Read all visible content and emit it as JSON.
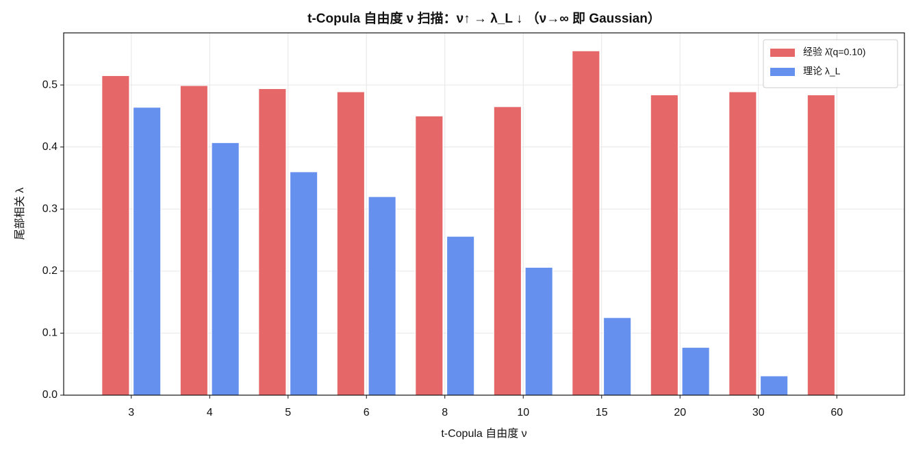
{
  "chart_data": {
    "type": "bar",
    "title": "t-Copula 自由度 ν 扫描：ν↑ → λ_L ↓ （ν→∞ 即 Gaussian）",
    "x_label": "t-Copula 自由度 ν",
    "y_label": "尾部相关 λ",
    "categories": [
      "3",
      "4",
      "5",
      "6",
      "8",
      "10",
      "15",
      "20",
      "30",
      "60"
    ],
    "series": [
      {
        "name": "经验 λ̂(q=0.10)",
        "color": "#e66767",
        "values": [
          0.515,
          0.499,
          0.494,
          0.489,
          0.45,
          0.465,
          0.555,
          0.484,
          0.489,
          0.484
        ]
      },
      {
        "name": "理论 λ_L",
        "color": "#6690ee",
        "values": [
          0.464,
          0.407,
          0.36,
          0.32,
          0.256,
          0.206,
          0.125,
          0.077,
          0.031,
          0.001
        ]
      }
    ],
    "ylim": [
      0,
      0.584
    ],
    "yticks": [
      {
        "value": 0,
        "label": "0.0"
      },
      0.1,
      0.2,
      0.3,
      0.4,
      0.5
    ],
    "grid": true,
    "legend": "upper right"
  }
}
